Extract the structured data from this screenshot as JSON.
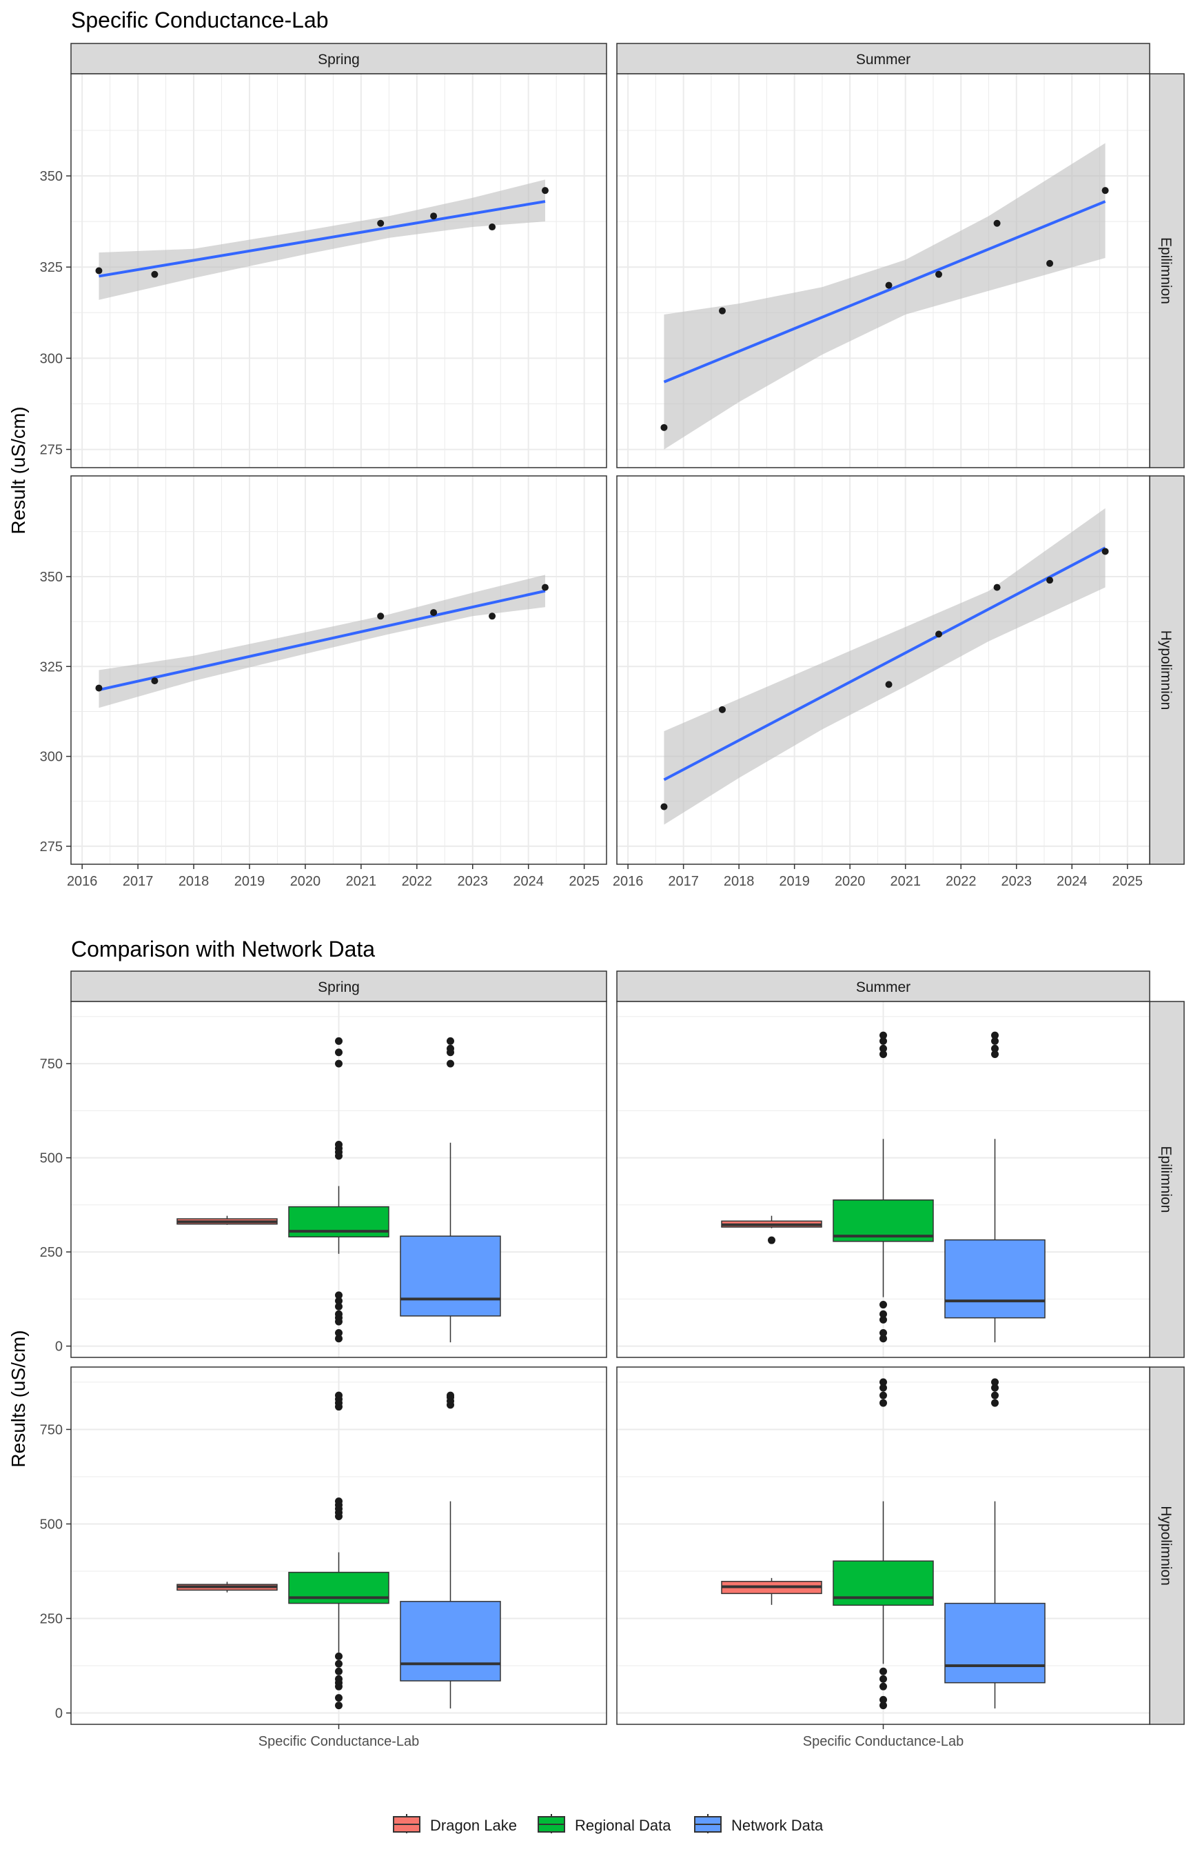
{
  "colors": {
    "strip_fill": "#d9d9d9",
    "grid": "#ebebeb",
    "panel_border": "#333333",
    "trend_line": "#3366ff",
    "ribbon": "#bebebe",
    "point": "#1a1a1a",
    "dragon": "#f8766d",
    "regional": "#00ba38",
    "network": "#619cff"
  },
  "legend": {
    "items": [
      {
        "name": "Dragon Lake",
        "color": "#f8766d"
      },
      {
        "name": "Regional Data",
        "color": "#00ba38"
      },
      {
        "name": "Network Data",
        "color": "#619cff"
      }
    ]
  },
  "chart_data": [
    {
      "type": "scatter",
      "title": "Specific Conductance-Lab",
      "ylabel": "Result (uS/cm)",
      "xlabel": "",
      "xlim": [
        2015.8,
        2025.4
      ],
      "ylim": [
        270,
        378
      ],
      "xticks": [
        "2016",
        "2017",
        "2018",
        "2019",
        "2020",
        "2021",
        "2022",
        "2023",
        "2024",
        "2025"
      ],
      "yticks": [
        "275",
        "300",
        "325",
        "350"
      ],
      "columns": [
        "Spring",
        "Summer"
      ],
      "rows": [
        "Epilimnion",
        "Hypolimnion"
      ],
      "panels": [
        {
          "col": "Spring",
          "row": "Epilimnion",
          "points": [
            [
              2016.3,
              324
            ],
            [
              2017.3,
              323
            ],
            [
              2021.35,
              337
            ],
            [
              2022.3,
              339
            ],
            [
              2023.35,
              336
            ],
            [
              2024.3,
              346
            ]
          ],
          "fit": {
            "x0": 2016.3,
            "y0": 322.5,
            "x1": 2024.3,
            "y1": 343
          },
          "ribbon": [
            [
              2016.3,
              316,
              329
            ],
            [
              2018.0,
              322,
              330
            ],
            [
              2020.0,
              328.5,
              335
            ],
            [
              2021.5,
              333,
              339
            ],
            [
              2023.0,
              336,
              344
            ],
            [
              2024.3,
              337.5,
              349
            ]
          ]
        },
        {
          "col": "Summer",
          "row": "Epilimnion",
          "points": [
            [
              2016.65,
              281
            ],
            [
              2017.7,
              313
            ],
            [
              2020.7,
              320
            ],
            [
              2021.6,
              323
            ],
            [
              2022.65,
              337
            ],
            [
              2023.6,
              326
            ],
            [
              2024.6,
              346
            ]
          ],
          "fit": {
            "x0": 2016.65,
            "y0": 293.5,
            "x1": 2024.6,
            "y1": 343
          },
          "ribbon": [
            [
              2016.65,
              275,
              312
            ],
            [
              2018.0,
              288,
              315
            ],
            [
              2019.5,
              301,
              319.5
            ],
            [
              2021.0,
              312,
              327
            ],
            [
              2022.5,
              318.5,
              339
            ],
            [
              2024.6,
              327.5,
              359
            ]
          ]
        },
        {
          "col": "Spring",
          "row": "Hypolimnion",
          "points": [
            [
              2016.3,
              319
            ],
            [
              2017.3,
              321
            ],
            [
              2021.35,
              339
            ],
            [
              2022.3,
              340
            ],
            [
              2023.35,
              339
            ],
            [
              2024.3,
              347
            ]
          ],
          "fit": {
            "x0": 2016.3,
            "y0": 318.5,
            "x1": 2024.3,
            "y1": 346
          },
          "ribbon": [
            [
              2016.3,
              313.5,
              324
            ],
            [
              2018.0,
              321,
              328
            ],
            [
              2020.0,
              328.5,
              334.5
            ],
            [
              2021.5,
              334,
              339.5
            ],
            [
              2023.0,
              339,
              345.5
            ],
            [
              2024.3,
              341.5,
              350.5
            ]
          ]
        },
        {
          "col": "Summer",
          "row": "Hypolimnion",
          "points": [
            [
              2016.65,
              286
            ],
            [
              2017.7,
              313
            ],
            [
              2020.7,
              320
            ],
            [
              2021.6,
              334
            ],
            [
              2022.65,
              347
            ],
            [
              2023.6,
              349
            ],
            [
              2024.6,
              357
            ]
          ],
          "fit": {
            "x0": 2016.65,
            "y0": 293.5,
            "x1": 2024.6,
            "y1": 358
          },
          "ribbon": [
            [
              2016.65,
              281,
              307
            ],
            [
              2018.0,
              294,
              316
            ],
            [
              2019.5,
              307.5,
              326
            ],
            [
              2021.0,
              319.5,
              336
            ],
            [
              2022.5,
              332,
              346
            ],
            [
              2024.6,
              347,
              369
            ]
          ]
        }
      ]
    },
    {
      "type": "boxplot",
      "title": "Comparison with Network Data",
      "ylabel": "Results (uS/cm)",
      "xlabel": "",
      "category": "Specific Conductance-Lab",
      "ylim": [
        -30,
        915
      ],
      "yticks": [
        "0",
        "250",
        "500",
        "750"
      ],
      "columns": [
        "Spring",
        "Summer"
      ],
      "rows": [
        "Epilimnion",
        "Hypolimnion"
      ],
      "series": [
        "Dragon Lake",
        "Regional Data",
        "Network Data"
      ],
      "panels": [
        {
          "col": "Spring",
          "row": "Epilimnion",
          "boxes": [
            {
              "series": "Dragon Lake",
              "q1": 324,
              "median": 330,
              "q3": 338,
              "lower": 322,
              "upper": 346,
              "outliers": []
            },
            {
              "series": "Regional Data",
              "q1": 290,
              "median": 305,
              "q3": 370,
              "lower": 245,
              "upper": 425,
              "outliers": [
                20,
                35,
                65,
                75,
                85,
                105,
                120,
                135,
                505,
                515,
                525,
                535,
                750,
                780,
                810
              ]
            },
            {
              "series": "Network Data",
              "q1": 80,
              "median": 125,
              "q3": 292,
              "lower": 10,
              "upper": 540,
              "outliers": [
                750,
                780,
                790,
                810
              ]
            }
          ]
        },
        {
          "col": "Summer",
          "row": "Epilimnion",
          "boxes": [
            {
              "series": "Dragon Lake",
              "q1": 316,
              "median": 322,
              "q3": 332,
              "lower": 313,
              "upper": 346,
              "outliers": [
                281
              ]
            },
            {
              "series": "Regional Data",
              "q1": 278,
              "median": 292,
              "q3": 388,
              "lower": 130,
              "upper": 550,
              "outliers": [
                20,
                35,
                70,
                85,
                110,
                775,
                790,
                810,
                825
              ]
            },
            {
              "series": "Network Data",
              "q1": 75,
              "median": 120,
              "q3": 282,
              "lower": 10,
              "upper": 550,
              "outliers": [
                775,
                790,
                810,
                825
              ]
            }
          ]
        },
        {
          "col": "Spring",
          "row": "Hypolimnion",
          "boxes": [
            {
              "series": "Dragon Lake",
              "q1": 325,
              "median": 334,
              "q3": 340,
              "lower": 319,
              "upper": 347,
              "outliers": []
            },
            {
              "series": "Regional Data",
              "q1": 290,
              "median": 305,
              "q3": 372,
              "lower": 160,
              "upper": 425,
              "outliers": [
                20,
                40,
                70,
                80,
                90,
                110,
                130,
                150,
                520,
                530,
                540,
                550,
                560,
                810,
                820,
                830,
                840
              ]
            },
            {
              "series": "Network Data",
              "q1": 85,
              "median": 130,
              "q3": 295,
              "lower": 12,
              "upper": 560,
              "outliers": [
                815,
                825,
                835,
                840
              ]
            }
          ]
        },
        {
          "col": "Summer",
          "row": "Hypolimnion",
          "boxes": [
            {
              "series": "Dragon Lake",
              "q1": 316,
              "median": 334,
              "q3": 348,
              "lower": 286,
              "upper": 357,
              "outliers": []
            },
            {
              "series": "Regional Data",
              "q1": 285,
              "median": 305,
              "q3": 402,
              "lower": 130,
              "upper": 560,
              "outliers": [
                20,
                35,
                70,
                90,
                110,
                820,
                840,
                860,
                875
              ]
            },
            {
              "series": "Network Data",
              "q1": 80,
              "median": 125,
              "q3": 290,
              "lower": 12,
              "upper": 560,
              "outliers": [
                820,
                840,
                860,
                875
              ]
            }
          ]
        }
      ]
    }
  ]
}
